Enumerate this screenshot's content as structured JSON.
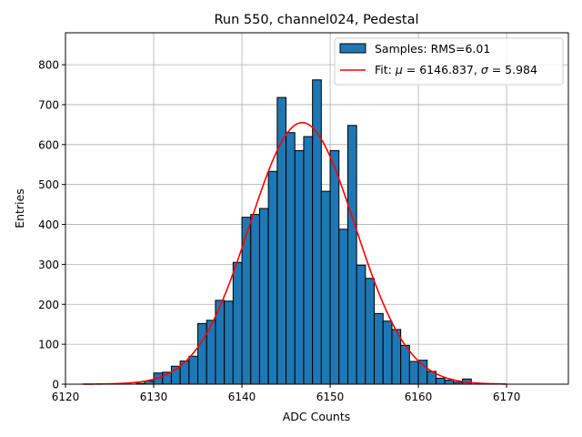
{
  "chart_data": {
    "type": "bar",
    "title": "Run 550, channel024, Pedestal",
    "xlabel": "ADC Counts",
    "ylabel": "Entries",
    "xlim": [
      6120,
      6177
    ],
    "ylim": [
      0,
      880
    ],
    "grid": true,
    "legend_position": "top-right",
    "bin_width": 1,
    "bin_edge_start": 6122,
    "xticks": [
      6120,
      6130,
      6140,
      6150,
      6160,
      6170
    ],
    "yticks": [
      0,
      100,
      200,
      300,
      400,
      500,
      600,
      700,
      800
    ],
    "series": [
      {
        "name": "Samples: RMS=6.01",
        "type": "histogram",
        "color": "#1f77b4",
        "edgecolor": "#000000",
        "bin_starts": [
          6122,
          6123,
          6124,
          6125,
          6126,
          6127,
          6128,
          6129,
          6130,
          6131,
          6132,
          6133,
          6134,
          6135,
          6136,
          6137,
          6138,
          6139,
          6140,
          6141,
          6142,
          6143,
          6144,
          6145,
          6146,
          6147,
          6148,
          6149,
          6150,
          6151,
          6152,
          6153,
          6154,
          6155,
          6156,
          6157,
          6158,
          6159,
          6160,
          6161,
          6162,
          6163,
          6164,
          6165,
          6166,
          6167,
          6168,
          6169
        ],
        "values": [
          0,
          0,
          0,
          0,
          0,
          0,
          2,
          8,
          28,
          30,
          45,
          58,
          70,
          152,
          160,
          210,
          208,
          305,
          418,
          425,
          440,
          533,
          718,
          630,
          585,
          620,
          762,
          483,
          585,
          388,
          648,
          298,
          265,
          177,
          158,
          137,
          97,
          57,
          60,
          32,
          15,
          10,
          5,
          13,
          0,
          0,
          0,
          0
        ]
      },
      {
        "name": "Fit: μ = 6146.837, σ = 5.984",
        "type": "line",
        "color": "#ff0000",
        "function": "gaussian",
        "amplitude": 655,
        "mean": 6146.837,
        "sigma": 5.984,
        "x_range": [
          6122,
          6170
        ]
      }
    ],
    "legend": {
      "samples_label": "Samples: RMS=6.01",
      "fit_prefix": "Fit: ",
      "mu_symbol": "μ",
      "fit_mid": " = 6146.837, ",
      "sigma_symbol": "σ",
      "fit_suffix": " = 5.984"
    }
  }
}
